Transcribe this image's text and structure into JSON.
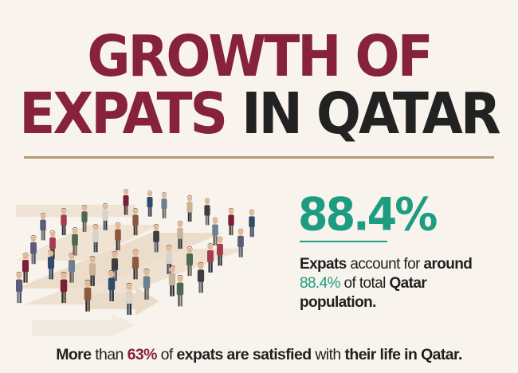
{
  "title": {
    "line1": "GROWTH OF",
    "line2_highlight": "EXPATS",
    "line2_rest": "IN QATAR"
  },
  "stat": {
    "value": "88.4%",
    "desc_p1": "Expats",
    "desc_p2": " account for ",
    "desc_p3": "around",
    "desc_p4": "88.4%",
    "desc_p5": " of total ",
    "desc_p6": "Qatar",
    "desc_p7": "population."
  },
  "footer": {
    "p1": "More",
    "p2": " than ",
    "p3": "63%",
    "p4": " of ",
    "p5": "expats are satisfied",
    "p6": " with ",
    "p7": "their life in Qatar."
  },
  "colors": {
    "maroon": "#86213e",
    "teal": "#1e9c81",
    "dark": "#222222",
    "background": "#f8f4ed",
    "rule": "#b69a7a"
  },
  "icons": [
    "crowd-illustration",
    "arrow-path"
  ]
}
